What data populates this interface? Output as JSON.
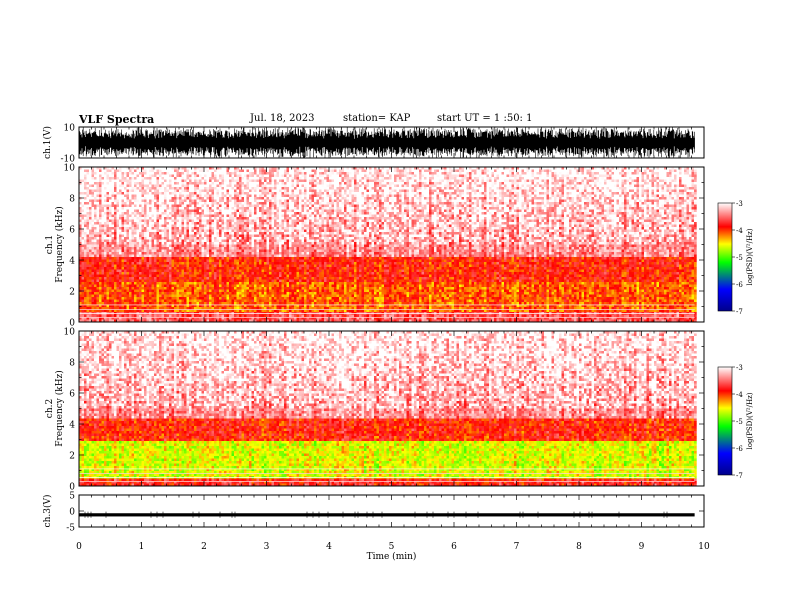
{
  "header": {
    "title": "VLF Spectra",
    "date": "Jul. 18, 2023",
    "station": "station= KAP",
    "start": "start UT =  1 :50: 1"
  },
  "colors": {
    "colormap": [
      "#00008b",
      "#0000ff",
      "#00ff00",
      "#ffff00",
      "#ff0000",
      "#ffffff"
    ],
    "waveform": "#000000"
  },
  "chart_data": [
    {
      "type": "line",
      "panel": "ch1-waveform",
      "ylabel": "ch.1(V)",
      "ylim": [
        -10,
        10
      ],
      "y_ticks": [
        "10",
        "-10"
      ],
      "xlim": [
        0,
        10
      ],
      "description_of_signal": "dense broadband waveform spanning most of the range",
      "data_end_min": 9.85
    },
    {
      "type": "heatmap",
      "panel": "ch1-spectrogram",
      "ylabel": "ch.1 Frequency (kHz)",
      "ylim": [
        0,
        10
      ],
      "y_ticks": [
        "0",
        "2",
        "4",
        "6",
        "8",
        "10"
      ],
      "xlim": [
        0,
        10
      ],
      "data_end_min": 9.85,
      "colorbar": {
        "label": "log(PSD)(V²/Hz)",
        "range": [
          -7,
          -3
        ],
        "ticks": [
          "-3",
          "-4",
          "-5",
          "-6",
          "-7"
        ]
      },
      "bands": [
        {
          "from_khz": 0.0,
          "to_khz": 0.8,
          "level": -3.6
        },
        {
          "from_khz": 0.8,
          "to_khz": 2.6,
          "level": -4.1
        },
        {
          "from_khz": 2.6,
          "to_khz": 4.2,
          "level": -3.9
        },
        {
          "from_khz": 4.2,
          "to_khz": 10.0,
          "level": -3.4
        }
      ]
    },
    {
      "type": "heatmap",
      "panel": "ch2-spectrogram",
      "ylabel": "ch.2 Frequency (kHz)",
      "ylim": [
        0,
        10
      ],
      "y_ticks": [
        "0",
        "2",
        "4",
        "6",
        "8",
        "10"
      ],
      "xlim": [
        0,
        10
      ],
      "data_end_min": 9.85,
      "colorbar": {
        "label": "log(PSD)(V²/Hz)",
        "range": [
          -7,
          -3
        ],
        "ticks": [
          "-3",
          "-4",
          "-5",
          "-6",
          "-7"
        ]
      },
      "bands": [
        {
          "from_khz": 0.0,
          "to_khz": 0.6,
          "level": -3.8
        },
        {
          "from_khz": 0.6,
          "to_khz": 3.0,
          "level": -4.6
        },
        {
          "from_khz": 3.0,
          "to_khz": 4.4,
          "level": -3.9
        },
        {
          "from_khz": 4.4,
          "to_khz": 10.0,
          "level": -3.4
        }
      ]
    },
    {
      "type": "line",
      "panel": "ch3-waveform",
      "ylabel": "ch.3(V)",
      "ylim": [
        -5,
        5
      ],
      "y_ticks": [
        "5",
        "0",
        "-5"
      ],
      "xlim": [
        0,
        10
      ],
      "center_value": -1.2,
      "amplitude": 0.5,
      "data_end_min": 9.85
    }
  ],
  "x_axis": {
    "label": "Time (min)",
    "ticks": [
      "0",
      "1",
      "2",
      "3",
      "4",
      "5",
      "6",
      "7",
      "8",
      "9",
      "10"
    ]
  }
}
